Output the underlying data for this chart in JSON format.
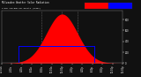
{
  "background_color": "#111111",
  "plot_bg_color": "#111111",
  "fill_color": "#ff0000",
  "avg_box_color": "#0000ff",
  "legend_red": "#ff0000",
  "legend_blue": "#0000ff",
  "title_color": "#ffffff",
  "grid_color": "#666666",
  "tick_color": "#ffffff",
  "spine_color": "#888888",
  "x_num_points": 1440,
  "peak_minute": 720,
  "peak_value": 900,
  "sigma": 185,
  "avg_value": 310,
  "avg_start_minute": 200,
  "avg_end_minute": 1100,
  "dashed_lines": [
    480,
    720,
    900
  ],
  "ylim": [
    0,
    960
  ],
  "xlim": [
    0,
    1440
  ],
  "yticks": [
    0,
    200,
    400,
    600,
    800
  ],
  "xtick_step": 120,
  "title_text": "Milwaukee Weather Solar Radiation",
  "subtitle_text": "& Day Average per Minute (Today)"
}
